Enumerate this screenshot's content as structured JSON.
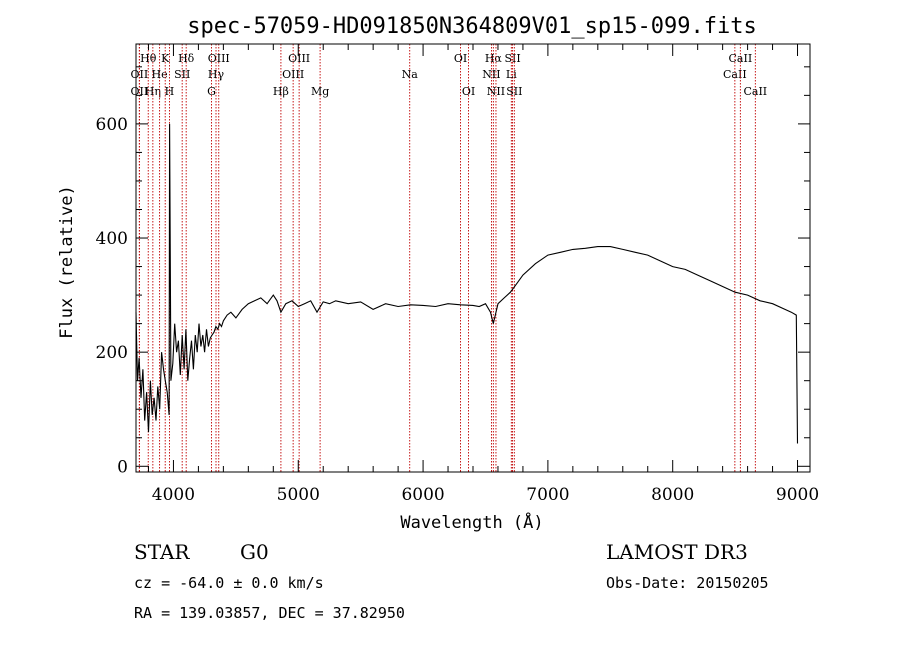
{
  "chart_data": {
    "type": "line",
    "title": "spec-57059-HD091850N364809V01_sp15-099.fits",
    "xlabel": "Wavelength (Å)",
    "ylabel": "Flux (relative)",
    "xlim": [
      3700,
      9100
    ],
    "ylim": [
      -10,
      740
    ],
    "x_ticks": [
      4000,
      5000,
      6000,
      7000,
      8000,
      9000
    ],
    "y_ticks": [
      0,
      200,
      400,
      600
    ],
    "series": [
      {
        "name": "flux",
        "x": [
          3700,
          3712,
          3725,
          3740,
          3755,
          3770,
          3785,
          3800,
          3815,
          3830,
          3845,
          3860,
          3875,
          3890,
          3905,
          3920,
          3935,
          3950,
          3965,
          3969,
          3980,
          3995,
          4010,
          4025,
          4040,
          4055,
          4070,
          4085,
          4100,
          4115,
          4130,
          4145,
          4160,
          4175,
          4190,
          4205,
          4220,
          4235,
          4250,
          4265,
          4280,
          4295,
          4310,
          4325,
          4340,
          4355,
          4370,
          4385,
          4400,
          4430,
          4460,
          4500,
          4550,
          4600,
          4650,
          4700,
          4750,
          4800,
          4830,
          4861,
          4900,
          4950,
          5000,
          5050,
          5100,
          5150,
          5200,
          5250,
          5300,
          5400,
          5500,
          5600,
          5700,
          5800,
          5900,
          6000,
          6100,
          6200,
          6300,
          6400,
          6450,
          6500,
          6540,
          6563,
          6600,
          6650,
          6700,
          6750,
          6800,
          6900,
          7000,
          7100,
          7200,
          7300,
          7400,
          7500,
          7600,
          7700,
          7800,
          7900,
          8000,
          8100,
          8200,
          8300,
          8400,
          8500,
          8600,
          8700,
          8800,
          8900,
          8950,
          8990,
          9000
        ],
        "y": [
          270,
          150,
          190,
          120,
          170,
          80,
          130,
          60,
          150,
          90,
          120,
          80,
          140,
          100,
          200,
          170,
          150,
          130,
          90,
          600,
          150,
          180,
          250,
          200,
          220,
          160,
          230,
          170,
          240,
          150,
          190,
          220,
          170,
          230,
          200,
          250,
          210,
          230,
          200,
          240,
          210,
          225,
          230,
          235,
          245,
          240,
          250,
          245,
          255,
          265,
          270,
          260,
          275,
          285,
          290,
          295,
          285,
          300,
          290,
          270,
          285,
          290,
          280,
          285,
          290,
          270,
          288,
          285,
          290,
          285,
          288,
          275,
          285,
          280,
          283,
          282,
          280,
          285,
          283,
          282,
          280,
          285,
          270,
          250,
          285,
          295,
          305,
          320,
          335,
          355,
          370,
          375,
          380,
          382,
          385,
          385,
          380,
          375,
          370,
          360,
          350,
          345,
          335,
          325,
          315,
          305,
          300,
          290,
          285,
          275,
          270,
          265,
          40
        ]
      }
    ],
    "lines": [
      {
        "name": "OII",
        "wavelength": 3727,
        "row": 2
      },
      {
        "name": "OII",
        "wavelength": 3727,
        "row": 3
      },
      {
        "name": "Hθ",
        "wavelength": 3798,
        "row": 1
      },
      {
        "name": "Hη",
        "wavelength": 3835,
        "row": 3
      },
      {
        "name": "He",
        "wavelength": 3889,
        "row": 2
      },
      {
        "name": "K",
        "wavelength": 3934,
        "row": 1
      },
      {
        "name": "H",
        "wavelength": 3968,
        "row": 3
      },
      {
        "name": "Hδ",
        "wavelength": 4102,
        "row": 1
      },
      {
        "name": "SII",
        "wavelength": 4070,
        "row": 2
      },
      {
        "name": "G",
        "wavelength": 4305,
        "row": 3
      },
      {
        "name": "OIII",
        "wavelength": 4363,
        "row": 1
      },
      {
        "name": "Hγ",
        "wavelength": 4341,
        "row": 2
      },
      {
        "name": "Hβ",
        "wavelength": 4861,
        "row": 3
      },
      {
        "name": "OIII",
        "wavelength": 4959,
        "row": 2
      },
      {
        "name": "OIII",
        "wavelength": 5007,
        "row": 1
      },
      {
        "name": "Mg",
        "wavelength": 5175,
        "row": 3
      },
      {
        "name": "Na",
        "wavelength": 5893,
        "row": 2
      },
      {
        "name": "OI",
        "wavelength": 6300,
        "row": 1
      },
      {
        "name": "OI",
        "wavelength": 6364,
        "row": 3
      },
      {
        "name": "Hα",
        "wavelength": 6563,
        "row": 1
      },
      {
        "name": "NII",
        "wavelength": 6548,
        "row": 2
      },
      {
        "name": "NII",
        "wavelength": 6584,
        "row": 3
      },
      {
        "name": "SII",
        "wavelength": 6717,
        "row": 1
      },
      {
        "name": "Li",
        "wavelength": 6707,
        "row": 2
      },
      {
        "name": "SII",
        "wavelength": 6731,
        "row": 3
      },
      {
        "name": "CaII",
        "wavelength": 8498,
        "row": 2
      },
      {
        "name": "CaII",
        "wavelength": 8542,
        "row": 1
      },
      {
        "name": "CaII",
        "wavelength": 8662,
        "row": 3
      }
    ]
  },
  "info": {
    "object_class": "STAR",
    "subclass": "G0",
    "survey": "LAMOST DR3",
    "redshift": "cz = -64.0 ± 0.0 km/s",
    "obs_date": "Obs-Date: 20150205",
    "coords": "RA = 139.03857, DEC =  37.82950"
  }
}
